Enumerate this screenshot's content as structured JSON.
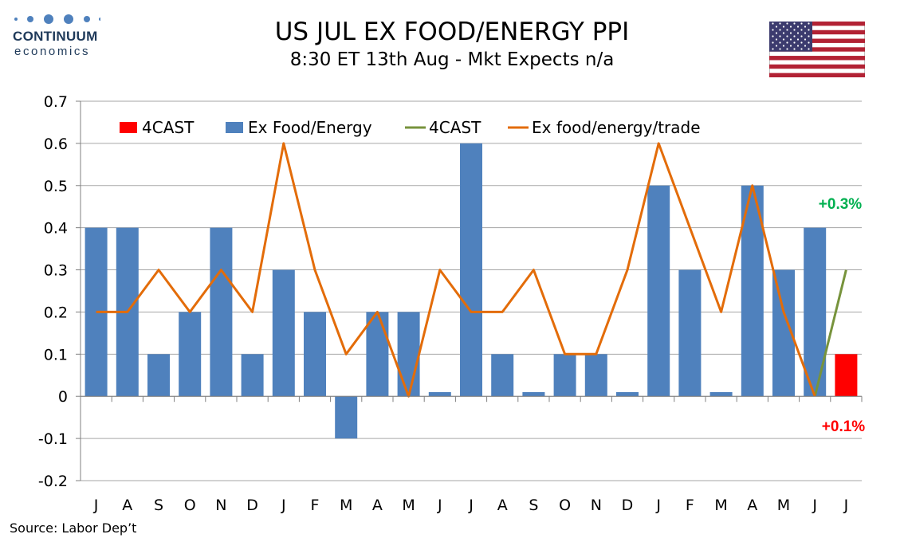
{
  "logo": {
    "brand": "CONTINUUM",
    "sub": "economics"
  },
  "title": "US JUL EX FOOD/ENERGY PPI",
  "subtitle": "8:30 ET 13th Aug - Mkt Expects n/a",
  "source": "Source: Labor Dep’t",
  "flag_icon": "us-flag-icon",
  "colors": {
    "bars": "#4f81bd",
    "forecast_bar": "#ff0000",
    "forecast_line": "#77933c",
    "line": "#e36c09",
    "label_up": "#00b050",
    "label_down": "#ff0000"
  },
  "chart_data": {
    "type": "bar",
    "categories": [
      "J",
      "A",
      "S",
      "O",
      "N",
      "D",
      "J",
      "F",
      "M",
      "A",
      "M",
      "J",
      "J",
      "A",
      "S",
      "O",
      "N",
      "D",
      "J",
      "F",
      "M",
      "A",
      "M",
      "J",
      "J"
    ],
    "ylim": [
      -0.2,
      0.7
    ],
    "yticks": [
      "0.7",
      "0.6",
      "0.5",
      "0.4",
      "0.3",
      "0.2",
      "0.1",
      "0",
      "-0.1",
      "-0.2"
    ],
    "grid": true,
    "legend_position": "top",
    "series": [
      {
        "name": "4CAST",
        "type": "bar",
        "values": [
          null,
          null,
          null,
          null,
          null,
          null,
          null,
          null,
          null,
          null,
          null,
          null,
          null,
          null,
          null,
          null,
          null,
          null,
          null,
          null,
          null,
          null,
          null,
          null,
          0.1
        ]
      },
      {
        "name": "Ex Food/Energy",
        "type": "bar",
        "values": [
          0.4,
          0.4,
          0.1,
          0.2,
          0.4,
          0.1,
          0.3,
          0.2,
          -0.1,
          0.2,
          0.2,
          0.01,
          0.6,
          0.1,
          0.01,
          0.1,
          0.1,
          0.01,
          0.5,
          0.3,
          0.01,
          0.5,
          0.3,
          0.4,
          null
        ]
      },
      {
        "name": "4CAST",
        "type": "line",
        "values": [
          null,
          null,
          null,
          null,
          null,
          null,
          null,
          null,
          null,
          null,
          null,
          null,
          null,
          null,
          null,
          null,
          null,
          null,
          null,
          null,
          null,
          null,
          null,
          0.0,
          0.3
        ]
      },
      {
        "name": "Ex food/energy/trade",
        "type": "line",
        "values": [
          0.2,
          0.2,
          0.3,
          0.2,
          0.3,
          0.2,
          0.6,
          0.3,
          0.1,
          0.2,
          0.0,
          0.3,
          0.2,
          0.2,
          0.3,
          0.1,
          0.1,
          0.3,
          0.6,
          0.4,
          0.2,
          0.5,
          0.2,
          0.0,
          null
        ]
      }
    ],
    "annotations": [
      {
        "text": "+0.3%",
        "value": 0.3,
        "category_index": 24,
        "color": "#00b050"
      },
      {
        "text": "+0.1%",
        "value": 0.1,
        "category_index": 24,
        "color": "#ff0000"
      }
    ]
  }
}
